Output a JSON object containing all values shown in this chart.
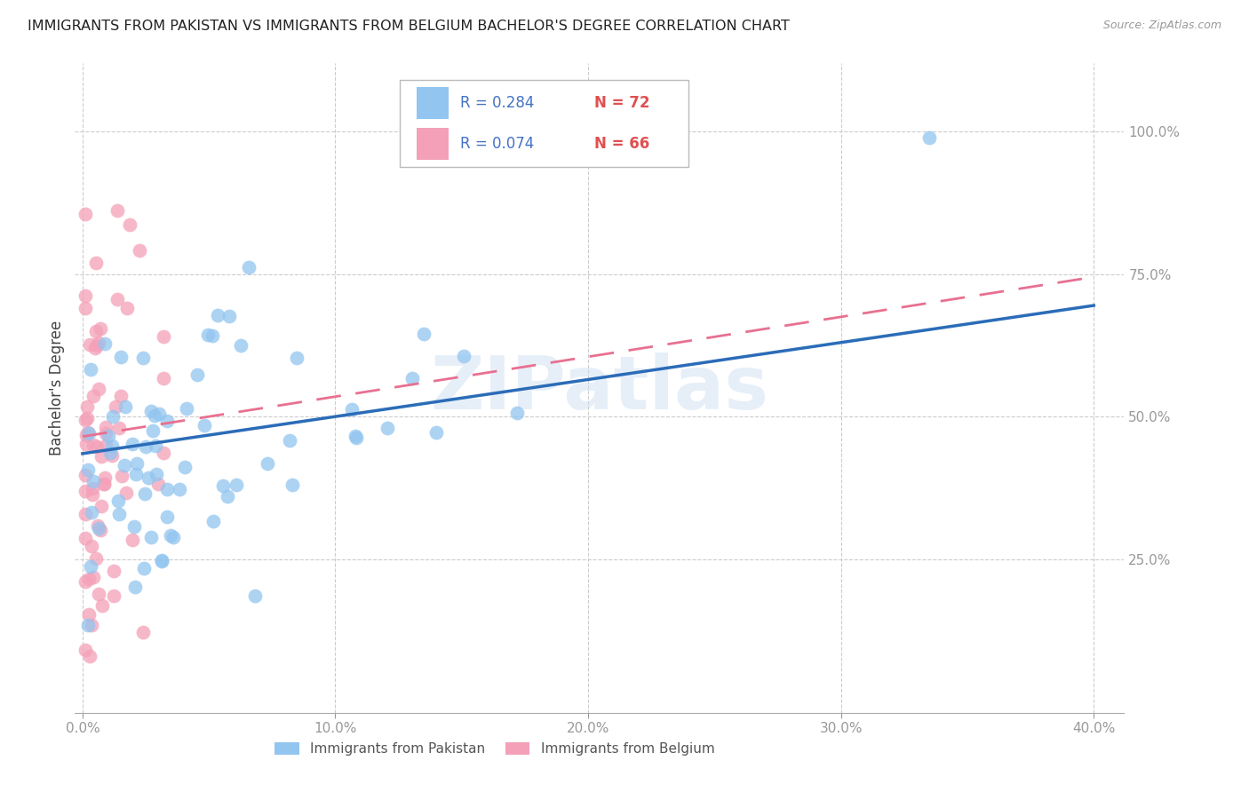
{
  "title": "IMMIGRANTS FROM PAKISTAN VS IMMIGRANTS FROM BELGIUM BACHELOR'S DEGREE CORRELATION CHART",
  "source": "Source: ZipAtlas.com",
  "ylabel": "Bachelor's Degree",
  "watermark": "ZIPatlas",
  "legend_r_pakistan": "R = 0.284",
  "legend_n_pakistan": "N = 72",
  "legend_r_belgium": "R = 0.074",
  "legend_n_belgium": "N = 66",
  "pakistan_color": "#92C5F0",
  "belgium_color": "#F4A0B8",
  "pakistan_line_color": "#2B6CB8",
  "belgium_line_color": "#E87090",
  "background_color": "#FFFFFF",
  "grid_color": "#CCCCCC",
  "tick_color": "#4472C4",
  "r_color": "#4472C4",
  "n_color": "#E05050",
  "pakistan_label": "Immigrants from Pakistan",
  "belgium_label": "Immigrants from Belgium",
  "xlim": [
    -0.003,
    0.412
  ],
  "ylim": [
    -0.02,
    1.12
  ],
  "x_ticks": [
    0.0,
    0.1,
    0.2,
    0.3,
    0.4
  ],
  "x_tick_labels": [
    "0.0%",
    "10.0%",
    "20.0%",
    "30.0%",
    "40.0%"
  ],
  "y_ticks": [
    0.25,
    0.5,
    0.75,
    1.0
  ],
  "y_tick_labels": [
    "25.0%",
    "50.0%",
    "75.0%",
    "100.0%"
  ],
  "pak_line_x": [
    0.0,
    0.4
  ],
  "pak_line_y": [
    0.435,
    0.695
  ],
  "bel_line_x": [
    0.0,
    0.4
  ],
  "bel_line_y": [
    0.465,
    0.745
  ]
}
